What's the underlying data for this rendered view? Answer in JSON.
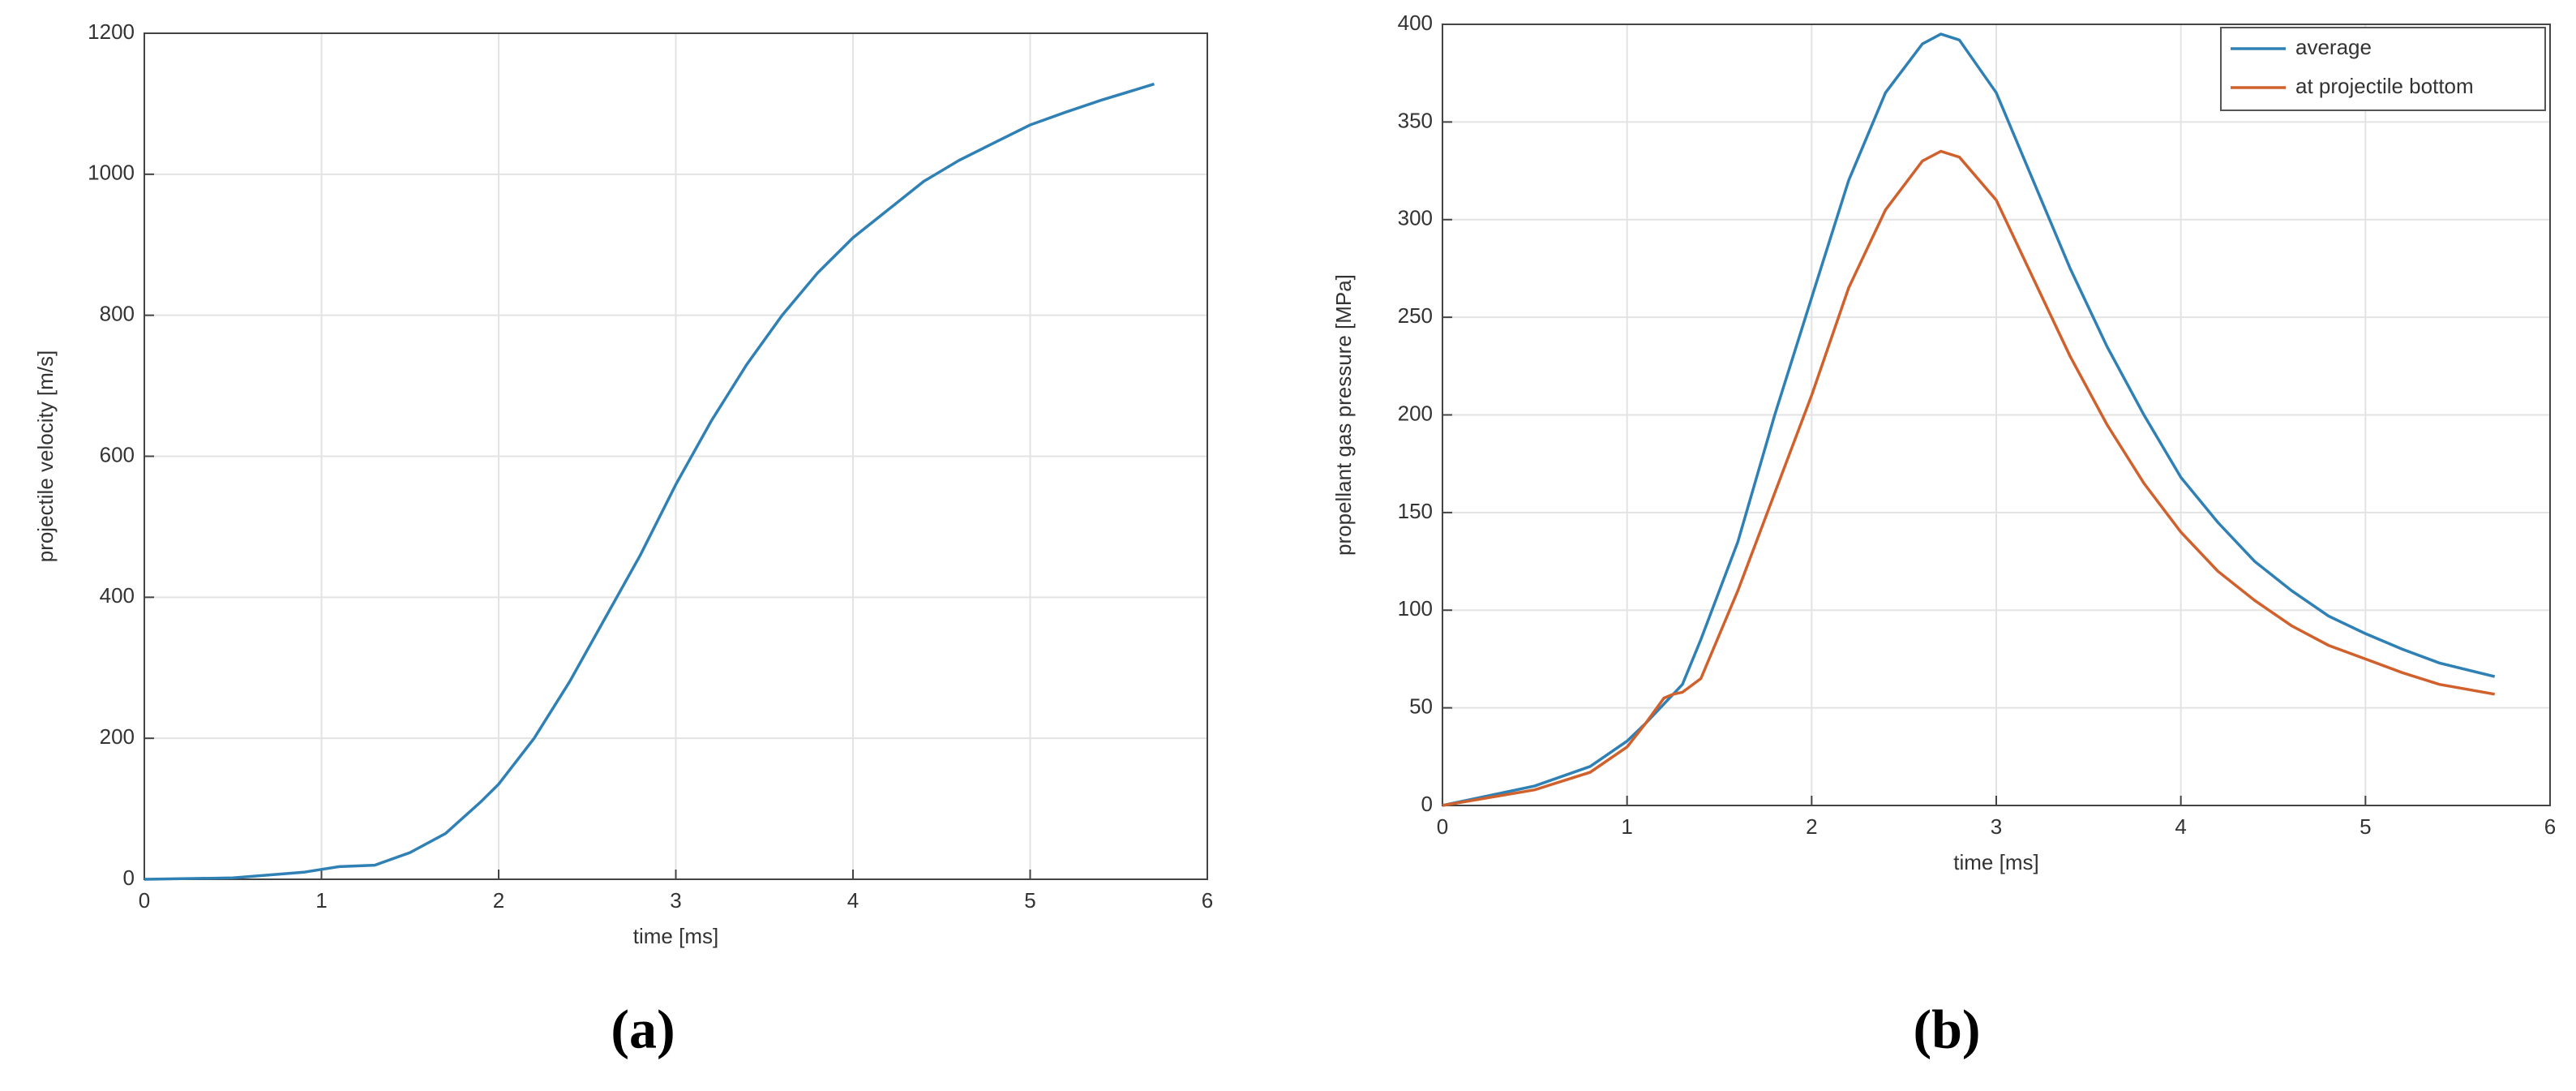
{
  "chart_data": [
    {
      "type": "line",
      "label": "(a)",
      "xlabel": "time [ms]",
      "ylabel": "projectile velocity [m/s]",
      "x": [
        0,
        0.5,
        0.9,
        1.0,
        1.1,
        1.3,
        1.5,
        1.7,
        1.9,
        2.0,
        2.2,
        2.4,
        2.6,
        2.8,
        3.0,
        3.2,
        3.4,
        3.6,
        3.8,
        4.0,
        4.2,
        4.4,
        4.6,
        4.8,
        5.0,
        5.2,
        5.4,
        5.7
      ],
      "values": [
        0,
        2,
        10,
        14,
        18,
        20,
        38,
        65,
        110,
        135,
        200,
        280,
        370,
        460,
        560,
        650,
        730,
        800,
        860,
        910,
        950,
        990,
        1020,
        1045,
        1070,
        1088,
        1105,
        1128
      ],
      "color": "#2f80b5",
      "xlim": [
        0,
        6
      ],
      "xticks": [
        0,
        1,
        2,
        3,
        4,
        5,
        6
      ],
      "ylim": [
        0,
        1200
      ],
      "yticks": [
        0,
        200,
        400,
        600,
        800,
        1000,
        1200
      ],
      "grid": true
    },
    {
      "type": "line",
      "label": "(b)",
      "xlabel": "time [ms]",
      "ylabel": "propellant gas pressure [MPa]",
      "x": [
        0,
        0.5,
        0.8,
        1.0,
        1.1,
        1.2,
        1.25,
        1.3,
        1.4,
        1.6,
        1.8,
        2.0,
        2.2,
        2.4,
        2.6,
        2.7,
        2.8,
        3.0,
        3.2,
        3.4,
        3.6,
        3.8,
        4.0,
        4.2,
        4.4,
        4.6,
        4.8,
        5.0,
        5.2,
        5.4,
        5.7
      ],
      "series": [
        {
          "name": "average",
          "color": "#2f80b5",
          "values": [
            0,
            10,
            20,
            33,
            42,
            52,
            57,
            62,
            85,
            135,
            200,
            260,
            320,
            365,
            390,
            395,
            392,
            365,
            320,
            275,
            235,
            200,
            168,
            145,
            125,
            110,
            97,
            88,
            80,
            73,
            66
          ]
        },
        {
          "name": "at projectile bottom",
          "color": "#d0612d",
          "values": [
            0,
            8,
            17,
            30,
            42,
            55,
            57,
            58,
            65,
            110,
            160,
            210,
            265,
            305,
            330,
            335,
            332,
            310,
            270,
            230,
            195,
            165,
            140,
            120,
            105,
            92,
            82,
            75,
            68,
            62,
            57
          ]
        }
      ],
      "xlim": [
        0,
        6
      ],
      "xticks": [
        0,
        1,
        2,
        3,
        4,
        5,
        6
      ],
      "ylim": [
        0,
        400
      ],
      "yticks": [
        0,
        50,
        100,
        150,
        200,
        250,
        300,
        350,
        400
      ],
      "grid": true,
      "legend": "upper right"
    }
  ]
}
